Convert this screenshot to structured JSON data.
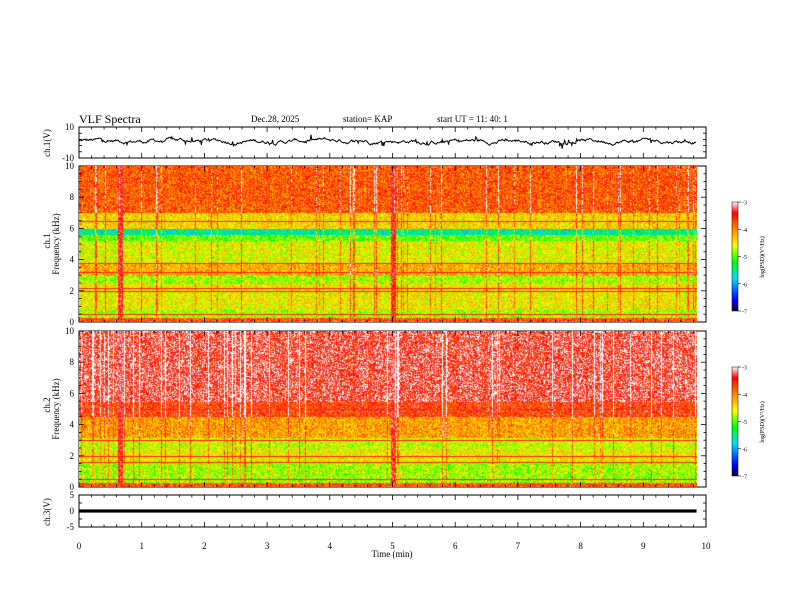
{
  "header": {
    "title": "VLF Spectra",
    "date": "Dec.28, 2025",
    "station": "station= KAP",
    "start": "start  UT =  11: 40: 1"
  },
  "chart_data": [
    {
      "type": "line",
      "panel": "ch1-waveform",
      "ylabel": "ch.1(V)",
      "ylim": [
        -10,
        10
      ],
      "yticks": [
        "10",
        "-10"
      ],
      "xlim": [
        0,
        9.85
      ],
      "series": [
        {
          "name": "ch.1",
          "style": "noisy",
          "mean": 1,
          "amplitude": 3,
          "color": "#000000"
        }
      ]
    },
    {
      "type": "heatmap",
      "panel": "ch1-spectrogram",
      "ylabel_top": "ch.1",
      "ylabel": "Frequency (kHz)",
      "ylim": [
        0,
        10
      ],
      "yticks": [
        "0",
        "2",
        "4",
        "6",
        "8",
        "10"
      ],
      "xlim": [
        0,
        9.85
      ],
      "profile_bands": [
        {
          "from": 0,
          "to": 0.8,
          "level": 0.55
        },
        {
          "from": 0.8,
          "to": 2.5,
          "level": 0.62
        },
        {
          "from": 2.5,
          "to": 3.0,
          "level": 0.55
        },
        {
          "from": 3.0,
          "to": 3.8,
          "level": 0.7
        },
        {
          "from": 3.8,
          "to": 5.2,
          "level": 0.6
        },
        {
          "from": 5.2,
          "to": 5.6,
          "level": 0.5
        },
        {
          "from": 5.6,
          "to": 6.0,
          "level": 0.35
        },
        {
          "from": 6.0,
          "to": 7.0,
          "level": 0.65
        },
        {
          "from": 7.0,
          "to": 10,
          "level": 0.8
        }
      ],
      "lines_khz": [
        0.5,
        2.0,
        2.2,
        3.2,
        3.8,
        6.5
      ],
      "bursts_min": [
        0.65,
        5.0
      ]
    },
    {
      "type": "heatmap",
      "panel": "ch2-spectrogram",
      "ylabel_top": "ch.2",
      "ylabel": "Frequency (kHz)",
      "ylim": [
        0,
        10
      ],
      "yticks": [
        "0",
        "2",
        "4",
        "6",
        "8",
        "10"
      ],
      "xlim": [
        0,
        9.85
      ],
      "profile_bands": [
        {
          "from": 0,
          "to": 0.8,
          "level": 0.55
        },
        {
          "from": 0.8,
          "to": 1.5,
          "level": 0.55
        },
        {
          "from": 1.5,
          "to": 2.5,
          "level": 0.62
        },
        {
          "from": 2.5,
          "to": 3.2,
          "level": 0.58
        },
        {
          "from": 3.2,
          "to": 4.5,
          "level": 0.72
        },
        {
          "from": 4.5,
          "to": 5.5,
          "level": 0.85
        },
        {
          "from": 5.5,
          "to": 10,
          "level": 0.92
        }
      ],
      "lines_khz": [
        0.5,
        1.6,
        2.0,
        3.0,
        5.0
      ],
      "bursts_min": [
        0.65,
        5.0
      ]
    },
    {
      "type": "line",
      "panel": "ch3-waveform",
      "ylabel": "ch.3(V)",
      "ylim": [
        -5,
        5
      ],
      "yticks": [
        "5",
        "0",
        "-5"
      ],
      "xlim": [
        0,
        9.85
      ],
      "series": [
        {
          "name": "ch.3",
          "style": "flat-band",
          "mean": 0,
          "band_low": -0.5,
          "band_high": 0.5,
          "color": "#000000"
        }
      ]
    }
  ],
  "xaxis": {
    "label": "Time (min)",
    "range": [
      0,
      10
    ],
    "ticks": [
      "0",
      "1",
      "2",
      "3",
      "4",
      "5",
      "6",
      "7",
      "8",
      "9",
      "10"
    ]
  },
  "colorbars": [
    {
      "label": "log(PSD)(V²/Hz)",
      "ticks": [
        "-3",
        "-4",
        "-5",
        "-6",
        "-7"
      ],
      "range": [
        -7,
        -3
      ]
    },
    {
      "label": "log(PSD)(V²/Hz)",
      "ticks": [
        "-3",
        "-4",
        "-5",
        "-6",
        "-7"
      ],
      "range": [
        -7,
        -3
      ]
    }
  ],
  "colors": {
    "low": "#000060",
    "mid_low": "#0000ff",
    "mid": "#00e0ff",
    "green": "#00ff00",
    "yellow": "#ffff00",
    "orange": "#ff9900",
    "red": "#ff0000",
    "high": "#ffffff"
  }
}
